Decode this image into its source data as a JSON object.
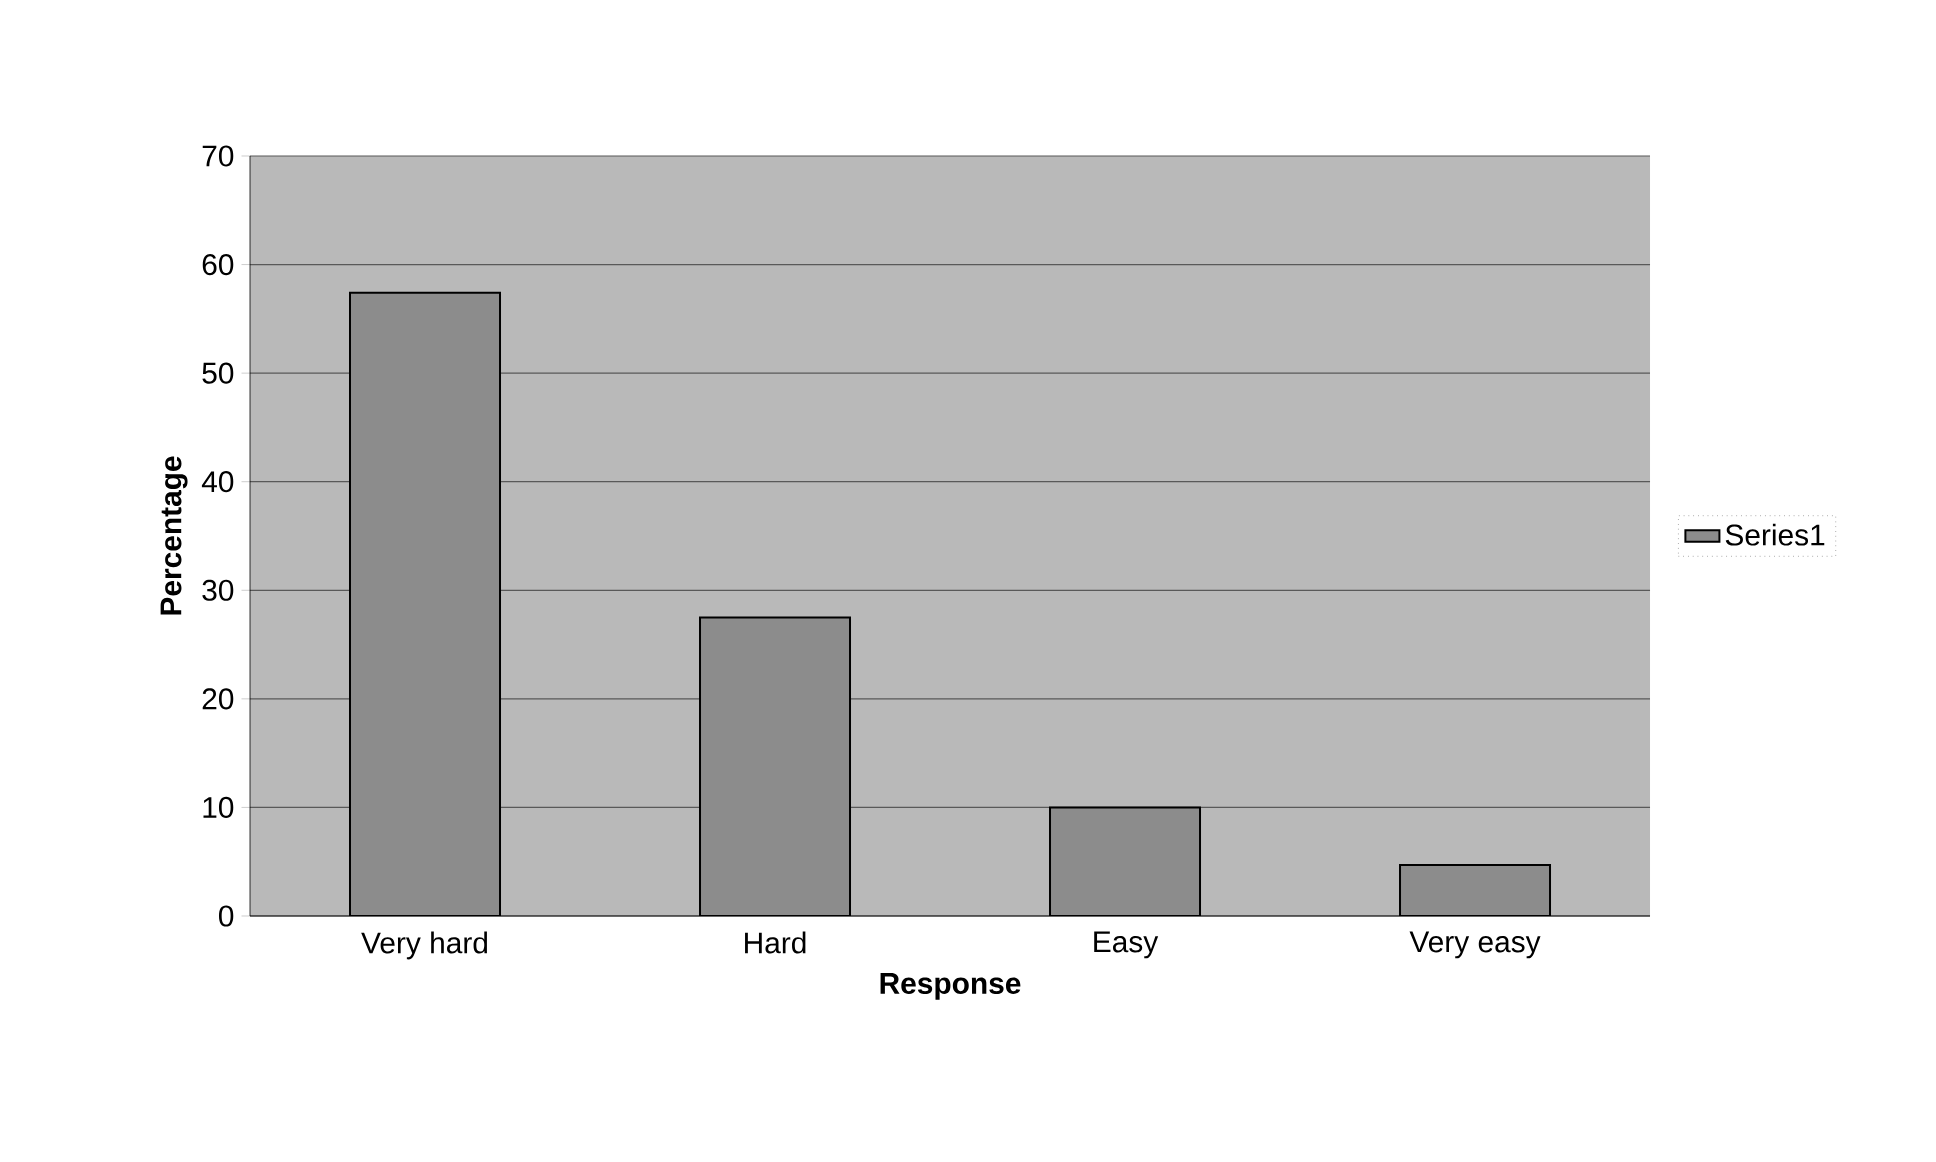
{
  "chart_data": {
    "type": "bar",
    "xlabel": "Response",
    "ylabel": "Percentage",
    "categories": [
      "Very hard",
      "Hard",
      "Easy",
      "Very easy"
    ],
    "series": [
      {
        "name": "Series1",
        "color": "#8c8c8c",
        "values": [
          57.4,
          27.5,
          10,
          4.7
        ]
      }
    ],
    "ylim": [
      0,
      70
    ],
    "yticks": [
      0,
      10,
      20,
      30,
      40,
      50,
      60,
      70
    ],
    "grid": "y",
    "legend": "right"
  }
}
